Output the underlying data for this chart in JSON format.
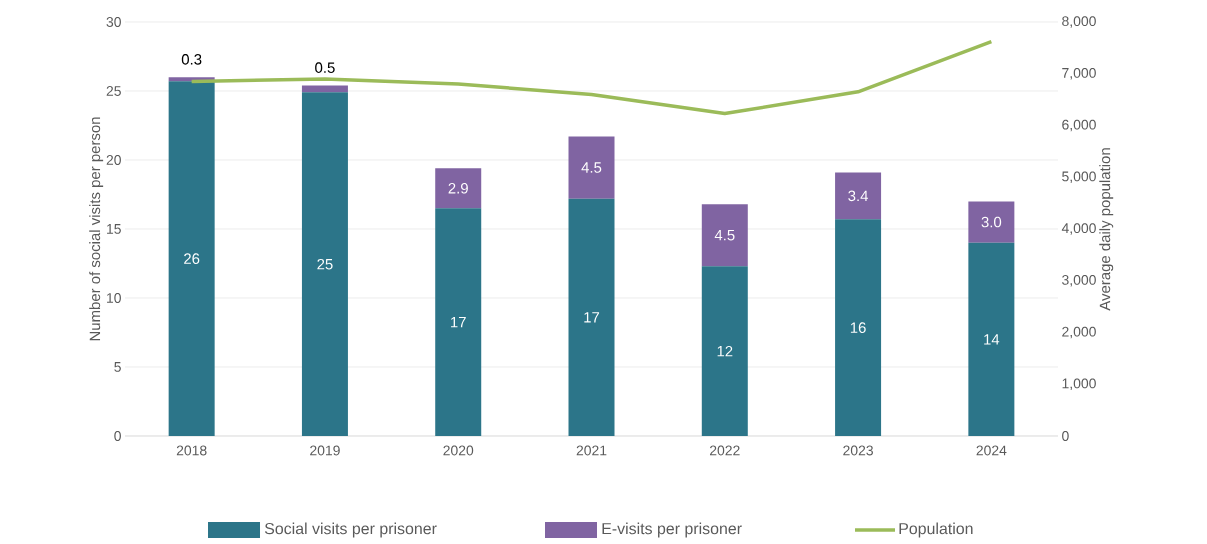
{
  "chart_data": {
    "type": "bar",
    "stacked": true,
    "categories": [
      "2018",
      "2019",
      "2020",
      "2021",
      "2022",
      "2023",
      "2024"
    ],
    "series": [
      {
        "name": "Social visits per prisoner",
        "color": "#2c7589",
        "values": [
          25.7,
          24.9,
          16.5,
          17.2,
          12.3,
          15.7,
          14.0
        ],
        "value_labels": [
          "26",
          "25",
          "17",
          "17",
          "12",
          "16",
          "14"
        ]
      },
      {
        "name": "E-visits per prisoner",
        "color": "#8064a2",
        "values": [
          0.3,
          0.5,
          2.9,
          4.5,
          4.5,
          3.4,
          3.0
        ],
        "value_labels": [
          "0.3",
          "0.5",
          "2.9",
          "4.5",
          "4.5",
          "3.4",
          "3.0"
        ]
      },
      {
        "name": "Population",
        "type": "line",
        "axis": "y2",
        "color": "#9bbb59",
        "values": [
          6850,
          6900,
          6800,
          6600,
          6230,
          6650,
          7620
        ]
      }
    ],
    "ylabel": "Number of social visits per person",
    "y2label": "Average daily population",
    "ylim": [
      0,
      30
    ],
    "yticks": [
      0,
      5,
      10,
      15,
      20,
      25,
      30
    ],
    "y2lim": [
      0,
      8000
    ],
    "y2ticks": [
      {
        "value": 0,
        "label": "0"
      },
      {
        "value": 1000,
        "label": "1,000"
      },
      {
        "value": 2000,
        "label": "2,000"
      },
      {
        "value": 3000,
        "label": "3,000"
      },
      {
        "value": 4000,
        "label": "4,000"
      },
      {
        "value": 5000,
        "label": "5,000"
      },
      {
        "value": 6000,
        "label": "6,000"
      },
      {
        "value": 7000,
        "label": "7,000"
      },
      {
        "value": 8000,
        "label": "8,000"
      }
    ],
    "grid": "y",
    "legend": "bottom",
    "marker": "none",
    "line_style": "solid"
  }
}
